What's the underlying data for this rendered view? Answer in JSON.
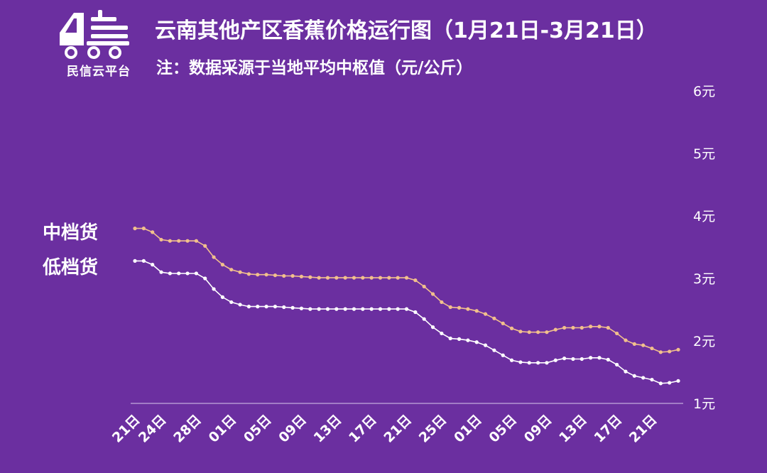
{
  "logo": {
    "text": "民信云平台",
    "name": "minxin-truck-logo"
  },
  "header": {
    "title": "云南其他产区香蕉价格运行图（1月21日-3月21日）",
    "subtitle": "注：数据采源于当地平均中枢值（元/公斤）"
  },
  "legend_labels": {
    "mid": "中档货",
    "low": "低档货"
  },
  "colors": {
    "background": "#6b2fa0",
    "mid_line": "#f2c08c",
    "low_line": "#ffffff",
    "axis": "#d9c9ec"
  },
  "chart_data": {
    "type": "line",
    "title": "云南其他产区香蕉价格运行图（1月21日-3月21日）",
    "subtitle": "注：数据采源于当地平均中枢值（元/公斤）",
    "x_start": "1月21日",
    "x_end": "3月21日",
    "x_ticks": [
      {
        "index": 0,
        "label": "21日"
      },
      {
        "index": 3,
        "label": "24日"
      },
      {
        "index": 7,
        "label": "28日"
      },
      {
        "index": 11,
        "label": "01日"
      },
      {
        "index": 15,
        "label": "05日"
      },
      {
        "index": 19,
        "label": "09日"
      },
      {
        "index": 23,
        "label": "13日"
      },
      {
        "index": 27,
        "label": "17日"
      },
      {
        "index": 31,
        "label": "21日"
      },
      {
        "index": 35,
        "label": "25日"
      },
      {
        "index": 39,
        "label": "01日"
      },
      {
        "index": 43,
        "label": "05日"
      },
      {
        "index": 47,
        "label": "09日"
      },
      {
        "index": 51,
        "label": "13日"
      },
      {
        "index": 55,
        "label": "17日"
      },
      {
        "index": 59,
        "label": "21日"
      }
    ],
    "y_ticks": [
      "1元",
      "2元",
      "3元",
      "4元",
      "5元",
      "6元"
    ],
    "ylim": [
      1,
      6
    ],
    "y_axis_side": "right",
    "grid": false,
    "legend_placement": "left",
    "series": [
      {
        "name": "中档货",
        "values": [
          3.8,
          3.8,
          3.74,
          3.62,
          3.6,
          3.6,
          3.6,
          3.6,
          3.52,
          3.34,
          3.22,
          3.14,
          3.1,
          3.07,
          3.06,
          3.06,
          3.05,
          3.04,
          3.04,
          3.03,
          3.02,
          3.01,
          3.01,
          3.01,
          3.01,
          3.01,
          3.01,
          3.01,
          3.01,
          3.01,
          3.01,
          3.01,
          2.97,
          2.87,
          2.75,
          2.62,
          2.54,
          2.53,
          2.51,
          2.48,
          2.43,
          2.36,
          2.28,
          2.2,
          2.15,
          2.14,
          2.14,
          2.14,
          2.18,
          2.21,
          2.21,
          2.21,
          2.23,
          2.23,
          2.21,
          2.12,
          2.01,
          1.95,
          1.93,
          1.88,
          1.82,
          1.83,
          1.86
        ]
      },
      {
        "name": "低档货",
        "values": [
          3.28,
          3.28,
          3.22,
          3.1,
          3.08,
          3.08,
          3.08,
          3.08,
          3.0,
          2.83,
          2.7,
          2.62,
          2.58,
          2.55,
          2.55,
          2.55,
          2.55,
          2.54,
          2.53,
          2.52,
          2.51,
          2.51,
          2.51,
          2.51,
          2.51,
          2.51,
          2.51,
          2.51,
          2.51,
          2.51,
          2.51,
          2.51,
          2.46,
          2.35,
          2.22,
          2.12,
          2.04,
          2.03,
          2.01,
          1.98,
          1.93,
          1.85,
          1.77,
          1.69,
          1.66,
          1.65,
          1.65,
          1.65,
          1.69,
          1.72,
          1.71,
          1.71,
          1.73,
          1.73,
          1.7,
          1.62,
          1.51,
          1.44,
          1.41,
          1.38,
          1.32,
          1.33,
          1.36
        ]
      }
    ]
  }
}
